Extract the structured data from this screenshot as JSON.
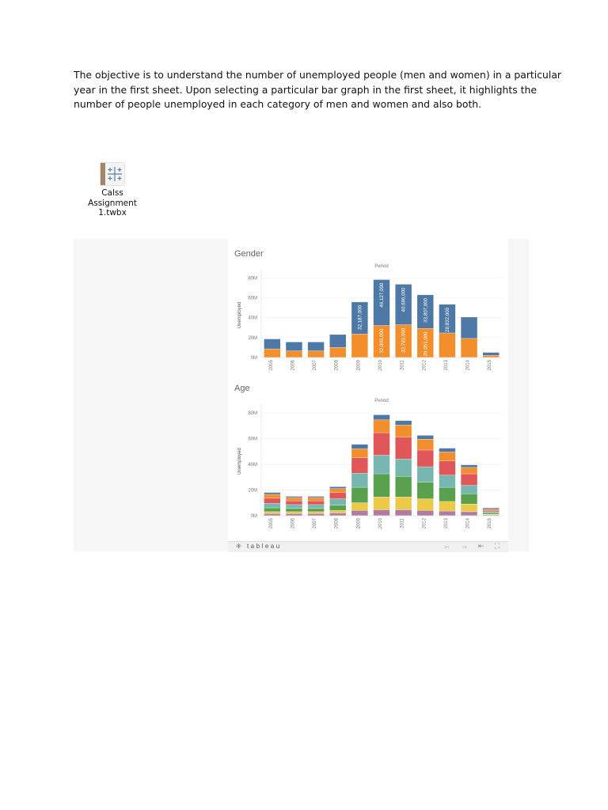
{
  "document": {
    "paragraph_lines": [
      "The objective is to understand the number of unemployed people (men and women) in a particular",
      "year in the first sheet. Upon selecting a particular bar graph in the first sheet, it highlights the",
      "number of people unemployed in each category of men and women and also both."
    ],
    "attachment": {
      "name_line1": "Calss Assignment",
      "name_line2": "1.twbx",
      "icon": "tableau-workbook-icon"
    }
  },
  "colors": {
    "blue": "#4e79a7",
    "orange": "#f28e2b",
    "red": "#e15759",
    "teal": "#76b7b2",
    "green": "#59a14f",
    "yellow": "#edc948",
    "purple": "#b07aa1",
    "navy": "#4e79a7"
  },
  "tableau_toolbar": {
    "logo_text": "tableau",
    "icons": [
      "undo-icon",
      "redo-icon",
      "revert-icon",
      "fullscreen-icon"
    ]
  },
  "chart_data": [
    {
      "type": "bar",
      "stacked": true,
      "title": "Gender",
      "header": "Period",
      "ylabel": "Unemployed",
      "ylim": [
        0,
        85
      ],
      "yticks": [
        "0M",
        "20M",
        "40M",
        "60M",
        "80M"
      ],
      "categories": [
        "2005",
        "2006",
        "2007",
        "2008",
        "2009",
        "2010",
        "2011",
        "2012",
        "2013",
        "2014",
        "2015"
      ],
      "series": [
        {
          "color": "#f28e2b",
          "values": [
            8.5,
            6.5,
            6.5,
            10,
            23.5,
            32.003,
            32.783,
            29.051,
            24.5,
            19,
            2
          ]
        },
        {
          "color": "#4e79a7",
          "values": [
            10,
            9,
            9,
            13,
            32.187,
            46.127,
            40.686,
            33.807,
            28.832,
            21.5,
            3
          ]
        }
      ],
      "data_labels": [
        {
          "category": "2009",
          "series": 1,
          "text": "32,187,000"
        },
        {
          "category": "2010",
          "series": 0,
          "text": "32,003,000"
        },
        {
          "category": "2010",
          "series": 1,
          "text": "46,127,000"
        },
        {
          "category": "2011",
          "series": 0,
          "text": "32,783,000"
        },
        {
          "category": "2011",
          "series": 1,
          "text": "40,686,000"
        },
        {
          "category": "2012",
          "series": 0,
          "text": "29,051,000"
        },
        {
          "category": "2012",
          "series": 1,
          "text": "33,807,000"
        },
        {
          "category": "2013",
          "series": 1,
          "text": "28,832,000"
        }
      ]
    },
    {
      "type": "bar",
      "stacked": true,
      "title": "Age",
      "header": "Period",
      "ylabel": "Unemployed",
      "ylim": [
        0,
        85
      ],
      "yticks": [
        "0M",
        "20M",
        "40M",
        "60M",
        "80M"
      ],
      "categories": [
        "2005",
        "2006",
        "2007",
        "2008",
        "2009",
        "2010",
        "2011",
        "2012",
        "2013",
        "2014",
        "2015"
      ],
      "series": [
        {
          "color": "#b07aa1",
          "values": [
            1.5,
            1.5,
            1.5,
            2,
            4,
            4.5,
            4.5,
            4,
            3.5,
            3,
            0.5
          ]
        },
        {
          "color": "#edc948",
          "values": [
            1.5,
            1.5,
            1.5,
            2,
            6,
            10,
            10,
            9,
            7.5,
            6,
            0.5
          ]
        },
        {
          "color": "#59a14f",
          "values": [
            3,
            2.5,
            2.5,
            4,
            12,
            18,
            16,
            13,
            11,
            8,
            1
          ]
        },
        {
          "color": "#76b7b2",
          "values": [
            3.5,
            3,
            3,
            5,
            11,
            14.5,
            13.5,
            12,
            9.5,
            6.5,
            1
          ]
        },
        {
          "color": "#e15759",
          "values": [
            4,
            3,
            3,
            5,
            12,
            17.5,
            17,
            13,
            11,
            9,
            1
          ]
        },
        {
          "color": "#f28e2b",
          "values": [
            3,
            2.5,
            2.5,
            3,
            7,
            10,
            9.5,
            8.5,
            7,
            5,
            1
          ]
        },
        {
          "color": "#4e79a7",
          "values": [
            1.5,
            1,
            1,
            1.5,
            3.5,
            4,
            3.5,
            3,
            3,
            2,
            1
          ]
        }
      ]
    }
  ]
}
